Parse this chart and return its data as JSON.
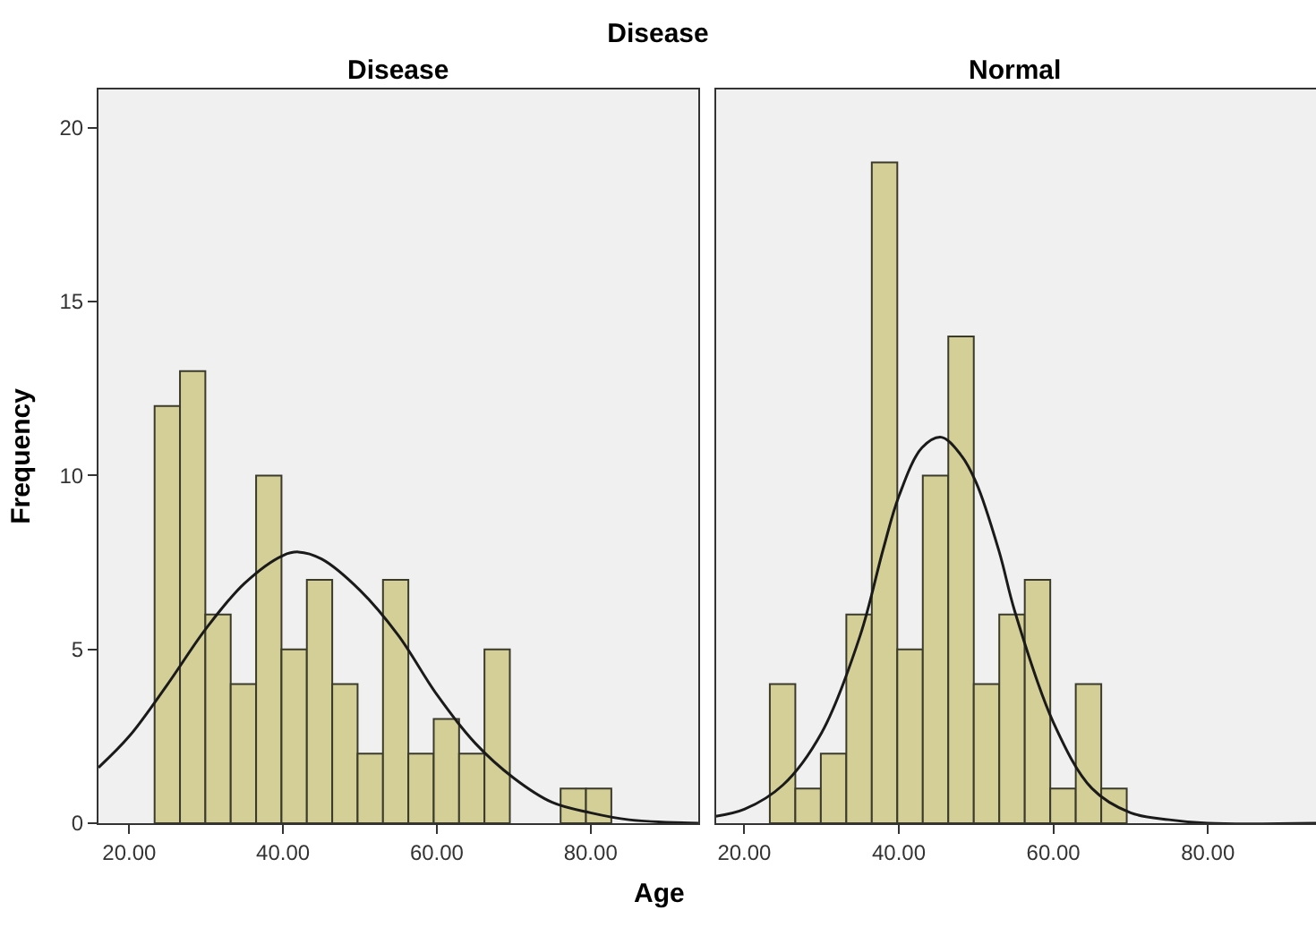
{
  "chart_data": [
    {
      "type": "histogram",
      "title": "Disease",
      "subtitle": "Disease",
      "xlabel": "Age",
      "ylabel": "Frequency",
      "color": "#d4cf97",
      "bins": [
        23.3,
        26.6,
        29.9,
        33.2,
        36.5,
        39.8,
        43.1,
        46.4,
        49.7,
        53.0,
        56.3,
        59.6,
        62.9,
        66.2,
        69.5,
        72.8,
        76.1,
        79.4,
        82.7
      ],
      "values": [
        12,
        13,
        6,
        4,
        10,
        5,
        7,
        4,
        2,
        7,
        2,
        3,
        2,
        5,
        0,
        0,
        1,
        1
      ],
      "series": [
        {
          "type": "line",
          "color": "#1a1a1a",
          "x": [
            16,
            20,
            25,
            30,
            35,
            40,
            42,
            45,
            50,
            55,
            60,
            65,
            70,
            75,
            80,
            85,
            94
          ],
          "values": [
            1.6,
            2.5,
            4.0,
            5.6,
            6.9,
            7.7,
            7.8,
            7.6,
            6.7,
            5.4,
            3.7,
            2.3,
            1.3,
            0.6,
            0.3,
            0.1,
            0
          ]
        }
      ],
      "xlim": [
        16,
        94
      ],
      "ylim": [
        0,
        21.1
      ],
      "xticks": [
        {
          "value": 20,
          "label": "20.00"
        },
        {
          "value": 40,
          "label": "40.00"
        },
        {
          "value": 60,
          "label": "60.00"
        },
        {
          "value": 80,
          "label": "80.00"
        }
      ],
      "yticks": [
        0,
        5,
        10,
        15,
        20
      ],
      "grid": false
    },
    {
      "type": "histogram",
      "subtitle": "Normal",
      "color": "#d4cf97",
      "bins": [
        23.3,
        26.6,
        29.9,
        33.2,
        36.5,
        39.8,
        43.1,
        46.4,
        49.7,
        53.0,
        56.3,
        59.6,
        62.9,
        66.2,
        69.5
      ],
      "values": [
        4,
        1,
        2,
        6,
        19,
        5,
        10,
        14,
        4,
        6,
        7,
        1,
        4,
        1
      ],
      "series": [
        {
          "type": "line",
          "color": "#1a1a1a",
          "x": [
            16.3,
            20,
            25,
            30,
            35,
            38,
            40,
            43,
            45.5,
            48,
            50,
            53,
            55,
            60,
            65,
            70,
            75,
            80,
            94
          ],
          "values": [
            0.2,
            0.4,
            1.1,
            2.6,
            5.4,
            7.9,
            9.4,
            10.8,
            11.1,
            10.6,
            9.8,
            7.8,
            6.1,
            2.9,
            1.0,
            0.3,
            0.1,
            0,
            0
          ]
        }
      ],
      "xlim": [
        16.3,
        94
      ],
      "ylim": [
        0,
        21.1
      ],
      "xticks": [
        {
          "value": 20,
          "label": "20.00"
        },
        {
          "value": 40,
          "label": "40.00"
        },
        {
          "value": 60,
          "label": "60.00"
        },
        {
          "value": 80,
          "label": "80.00"
        }
      ],
      "yticks": [
        0,
        5,
        10,
        15,
        20
      ],
      "grid": false,
      "tick_labels": "x"
    }
  ]
}
